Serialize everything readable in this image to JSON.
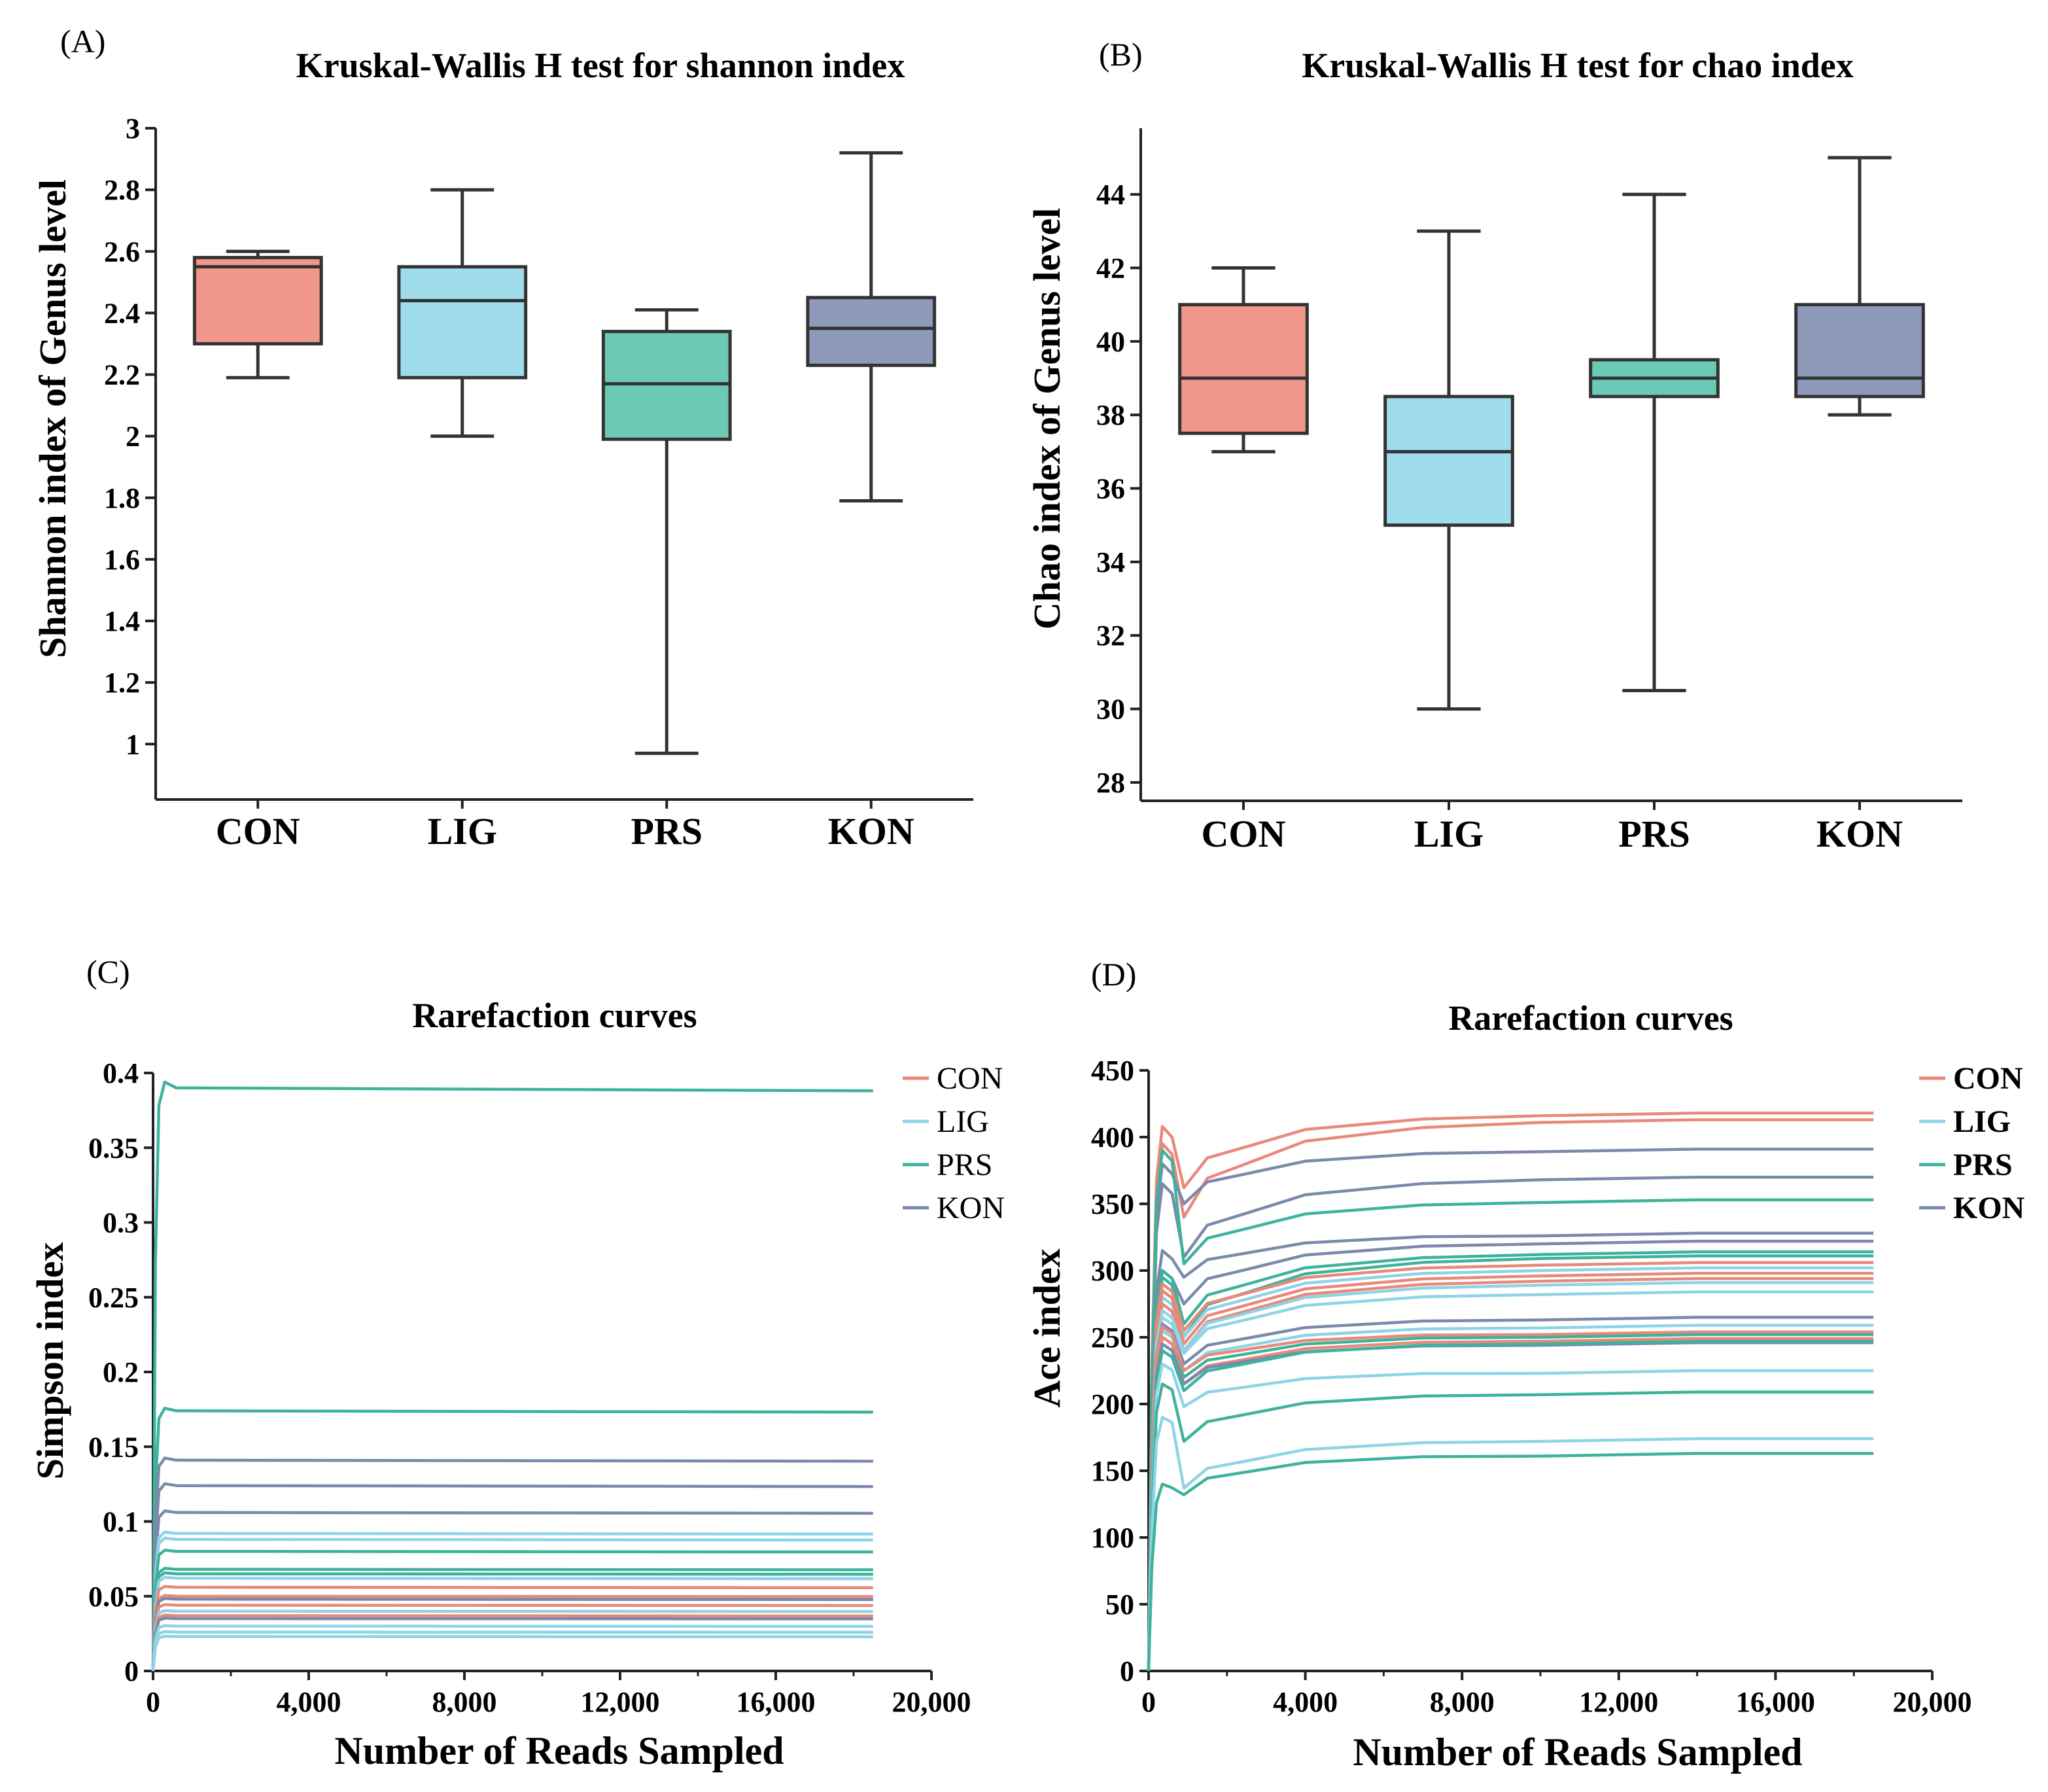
{
  "colors": {
    "CON": "#e8897b",
    "LIG": "#8fd3e6",
    "PRS": "#3eb39b",
    "KON": "#7b89ab",
    "CON_fill": "#ef978a",
    "LIG_fill": "#9fdcec",
    "PRS_fill": "#6cc9b6",
    "KON_fill": "#8e9ab9",
    "axis": "#222222",
    "box_stroke": "#333333"
  },
  "chart_data": [
    {
      "panel": "(A)",
      "type": "box",
      "title": "Kruskal-Wallis H test for shannon index",
      "xlabel": "",
      "ylabel": "Shannon index of Genus level",
      "ylim": [
        0.82,
        3.0
      ],
      "yticks": [
        1,
        1.2,
        1.4,
        1.6,
        1.8,
        2,
        2.2,
        2.4,
        2.6,
        2.8,
        3
      ],
      "ytick_labels": [
        "1",
        "1.2",
        "1.4",
        "1.6",
        "1.8",
        "2",
        "2.2",
        "2.4",
        "2.6",
        "2.8",
        "3"
      ],
      "categories": [
        "CON",
        "LIG",
        "PRS",
        "KON"
      ],
      "boxes": [
        {
          "name": "CON",
          "min": 2.19,
          "q1": 2.3,
          "median": 2.55,
          "q3": 2.58,
          "max": 2.6
        },
        {
          "name": "LIG",
          "min": 2.0,
          "q1": 2.19,
          "median": 2.44,
          "q3": 2.55,
          "max": 2.8
        },
        {
          "name": "PRS",
          "min": 0.97,
          "q1": 1.99,
          "median": 2.17,
          "q3": 2.34,
          "max": 2.41
        },
        {
          "name": "KON",
          "min": 1.79,
          "q1": 2.23,
          "median": 2.35,
          "q3": 2.45,
          "max": 2.92
        }
      ]
    },
    {
      "panel": "(B)",
      "type": "box",
      "title": "Kruskal-Wallis H test for chao index",
      "xlabel": "",
      "ylabel": "Chao index of Genus level",
      "ylim": [
        27.5,
        45.8
      ],
      "yticks": [
        28,
        30,
        32,
        34,
        36,
        38,
        40,
        42,
        44
      ],
      "ytick_labels": [
        "28",
        "30",
        "32",
        "34",
        "36",
        "38",
        "40",
        "42",
        "44"
      ],
      "categories": [
        "CON",
        "LIG",
        "PRS",
        "KON"
      ],
      "boxes": [
        {
          "name": "CON",
          "min": 37,
          "q1": 37.5,
          "median": 39,
          "q3": 41,
          "max": 42
        },
        {
          "name": "LIG",
          "min": 30,
          "q1": 35,
          "median": 37,
          "q3": 38.5,
          "max": 43
        },
        {
          "name": "PRS",
          "min": 30.5,
          "q1": 38.5,
          "median": 39,
          "q3": 39.5,
          "max": 44
        },
        {
          "name": "KON",
          "min": 38,
          "q1": 38.5,
          "median": 39,
          "q3": 41,
          "max": 45
        }
      ]
    },
    {
      "panel": "(C)",
      "type": "line",
      "title": "Rarefaction curves",
      "xlabel": "Number of Reads Sampled",
      "ylabel": "Simpson index",
      "xlim": [
        0,
        20000
      ],
      "ylim": [
        0,
        0.4
      ],
      "xticks": [
        0,
        4000,
        8000,
        12000,
        16000,
        20000
      ],
      "xtick_labels": [
        "0",
        "4,000",
        "8,000",
        "12,000",
        "16,000",
        "20,000"
      ],
      "yticks": [
        0,
        0.05,
        0.1,
        0.15,
        0.2,
        0.25,
        0.3,
        0.35,
        0.4
      ],
      "ytick_labels": [
        "0",
        "0.05",
        "0.1",
        "0.15",
        "0.2",
        "0.25",
        "0.3",
        "0.35",
        "0.4"
      ],
      "legend": [
        "CON",
        "LIG",
        "PRS",
        "KON"
      ],
      "legend_position": "right",
      "x_end": 18500,
      "series": [
        {
          "name": "PRS",
          "final": 0.39
        },
        {
          "name": "PRS",
          "final": 0.174
        },
        {
          "name": "KON",
          "final": 0.141
        },
        {
          "name": "KON",
          "final": 0.124
        },
        {
          "name": "KON",
          "final": 0.106
        },
        {
          "name": "LIG",
          "final": 0.092
        },
        {
          "name": "LIG",
          "final": 0.088
        },
        {
          "name": "PRS",
          "final": 0.08
        },
        {
          "name": "PRS",
          "final": 0.068
        },
        {
          "name": "PRS",
          "final": 0.065
        },
        {
          "name": "LIG",
          "final": 0.062
        },
        {
          "name": "CON",
          "final": 0.056
        },
        {
          "name": "CON",
          "final": 0.05
        },
        {
          "name": "KON",
          "final": 0.048
        },
        {
          "name": "CON",
          "final": 0.044
        },
        {
          "name": "LIG",
          "final": 0.04
        },
        {
          "name": "CON",
          "final": 0.037
        },
        {
          "name": "KON",
          "final": 0.035
        },
        {
          "name": "LIG",
          "final": 0.03
        },
        {
          "name": "LIG",
          "final": 0.026
        },
        {
          "name": "LIG",
          "final": 0.023
        }
      ]
    },
    {
      "panel": "(D)",
      "type": "line",
      "title": "Rarefaction curves",
      "xlabel": "Number of Reads Sampled",
      "ylabel": "Ace index",
      "xlim": [
        0,
        20000
      ],
      "ylim": [
        0,
        450
      ],
      "xticks": [
        0,
        4000,
        8000,
        12000,
        16000,
        20000
      ],
      "xtick_labels": [
        "0",
        "4,000",
        "8,000",
        "12,000",
        "16,000",
        "20,000"
      ],
      "yticks": [
        0,
        50,
        100,
        150,
        200,
        250,
        300,
        350,
        400,
        450
      ],
      "ytick_labels": [
        "0",
        "50",
        "100",
        "150",
        "200",
        "250",
        "300",
        "350",
        "400",
        "450"
      ],
      "legend": [
        "CON",
        "LIG",
        "PRS",
        "KON"
      ],
      "legend_position": "right",
      "x_end": 18500,
      "series": [
        {
          "name": "CON",
          "peak": 408,
          "dip": 362,
          "final": 418
        },
        {
          "name": "CON",
          "peak": 395,
          "dip": 340,
          "final": 413
        },
        {
          "name": "KON",
          "peak": 380,
          "dip": 350,
          "final": 391
        },
        {
          "name": "KON",
          "peak": 365,
          "dip": 310,
          "final": 370
        },
        {
          "name": "PRS",
          "peak": 390,
          "dip": 305,
          "final": 353
        },
        {
          "name": "KON",
          "peak": 315,
          "dip": 295,
          "final": 328
        },
        {
          "name": "KON",
          "peak": 300,
          "dip": 275,
          "final": 322
        },
        {
          "name": "PRS",
          "peak": 300,
          "dip": 260,
          "final": 314
        },
        {
          "name": "PRS",
          "peak": 295,
          "dip": 250,
          "final": 311
        },
        {
          "name": "CON",
          "peak": 290,
          "dip": 255,
          "final": 306
        },
        {
          "name": "LIG",
          "peak": 280,
          "dip": 250,
          "final": 302
        },
        {
          "name": "CON",
          "peak": 285,
          "dip": 245,
          "final": 298
        },
        {
          "name": "CON",
          "peak": 275,
          "dip": 240,
          "final": 294
        },
        {
          "name": "LIG",
          "peak": 270,
          "dip": 240,
          "final": 291
        },
        {
          "name": "LIG",
          "peak": 265,
          "dip": 238,
          "final": 284
        },
        {
          "name": "KON",
          "peak": 260,
          "dip": 230,
          "final": 265
        },
        {
          "name": "LIG",
          "peak": 255,
          "dip": 225,
          "final": 259
        },
        {
          "name": "CON",
          "peak": 258,
          "dip": 225,
          "final": 254
        },
        {
          "name": "PRS",
          "peak": 250,
          "dip": 220,
          "final": 252
        },
        {
          "name": "CON",
          "peak": 250,
          "dip": 215,
          "final": 249
        },
        {
          "name": "KON",
          "peak": 245,
          "dip": 215,
          "final": 246
        },
        {
          "name": "PRS",
          "peak": 240,
          "dip": 210,
          "final": 247
        },
        {
          "name": "LIG",
          "peak": 230,
          "dip": 198,
          "final": 225
        },
        {
          "name": "PRS",
          "peak": 215,
          "dip": 172,
          "final": 209
        },
        {
          "name": "LIG",
          "peak": 190,
          "dip": 137,
          "final": 174
        },
        {
          "name": "PRS",
          "peak": 140,
          "dip": 132,
          "final": 163
        }
      ]
    }
  ]
}
